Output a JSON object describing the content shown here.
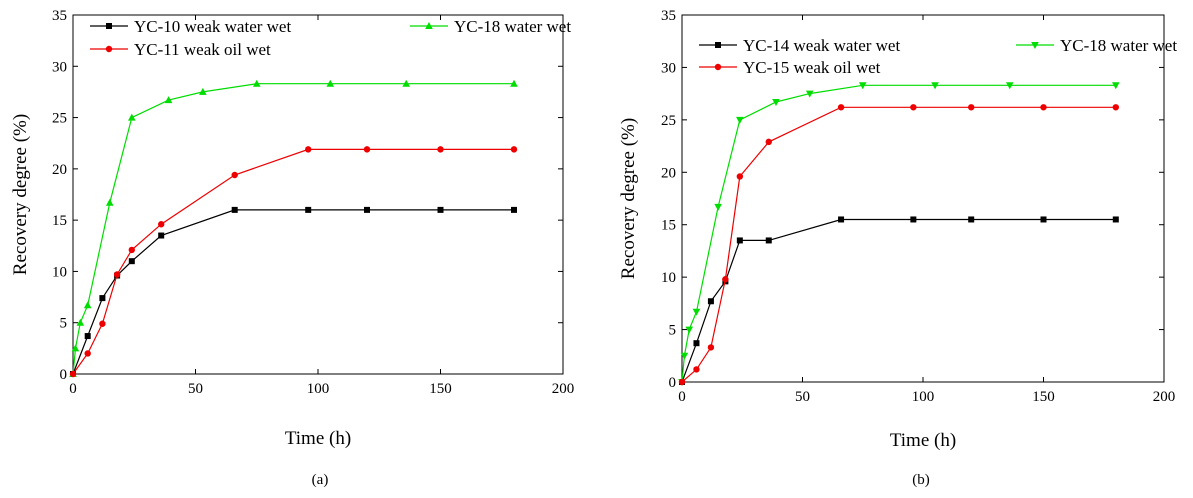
{
  "chart_data": [
    {
      "type": "line",
      "caption": "(a)",
      "xlabel": "Time (h)",
      "ylabel": "Recovery degree (%)",
      "xlim": [
        0,
        200
      ],
      "ylim": [
        0,
        35
      ],
      "xticks": [
        "0",
        "50",
        "100",
        "150",
        "200"
      ],
      "yticks": [
        "0",
        "5",
        "10",
        "15",
        "20",
        "25",
        "30",
        "35"
      ],
      "grid": false,
      "legend_position": "top-left",
      "series": [
        {
          "name": "YC-10 weak water wet",
          "color": "#000000",
          "marker": "square",
          "x": [
            0,
            6,
            12,
            18,
            24,
            36,
            66,
            96,
            120,
            150,
            180
          ],
          "y": [
            0,
            3.7,
            7.4,
            9.6,
            11.0,
            13.5,
            16.0,
            16.0,
            16.0,
            16.0,
            16.0
          ]
        },
        {
          "name": "YC-18 water wet",
          "color": "#00dd00",
          "marker": "triangle-up",
          "x": [
            0,
            1,
            3,
            6,
            15,
            24,
            39,
            53,
            75,
            105,
            136,
            180
          ],
          "y": [
            0,
            2.5,
            5.0,
            6.7,
            16.7,
            25.0,
            26.7,
            27.5,
            28.3,
            28.3,
            28.3,
            28.3
          ]
        },
        {
          "name": "YC-11 weak oil wet",
          "color": "#ee0000",
          "marker": "circle",
          "x": [
            0,
            6,
            12,
            18,
            24,
            36,
            66,
            96,
            120,
            150,
            180
          ],
          "y": [
            0,
            2.0,
            4.9,
            9.7,
            12.1,
            14.6,
            19.4,
            21.9,
            21.9,
            21.9,
            21.9
          ]
        }
      ]
    },
    {
      "type": "line",
      "caption": "(b)",
      "xlabel": "Time (h)",
      "ylabel": "Recovery degree (%)",
      "xlim": [
        0,
        200
      ],
      "ylim": [
        0,
        35
      ],
      "xticks": [
        "0",
        "50",
        "100",
        "150",
        "200"
      ],
      "yticks": [
        "0",
        "5",
        "10",
        "15",
        "20",
        "25",
        "30",
        "35"
      ],
      "grid": false,
      "legend_position": "top-left",
      "series": [
        {
          "name": "YC-14 weak water wet",
          "color": "#000000",
          "marker": "square",
          "x": [
            0,
            6,
            12,
            18,
            24,
            36,
            66,
            96,
            120,
            150,
            180
          ],
          "y": [
            0,
            3.7,
            7.7,
            9.6,
            13.5,
            13.5,
            15.5,
            15.5,
            15.5,
            15.5,
            15.5
          ]
        },
        {
          "name": "YC-18 water wet",
          "color": "#00dd00",
          "marker": "triangle-down",
          "x": [
            0,
            1,
            3,
            6,
            15,
            24,
            39,
            53,
            75,
            105,
            136,
            180
          ],
          "y": [
            0,
            2.5,
            5.0,
            6.7,
            16.7,
            25.0,
            26.7,
            27.5,
            28.3,
            28.3,
            28.3,
            28.3
          ]
        },
        {
          "name": "YC-15 weak oil wet",
          "color": "#ee0000",
          "marker": "circle",
          "x": [
            0,
            6,
            12,
            18,
            24,
            36,
            66,
            96,
            120,
            150,
            180
          ],
          "y": [
            0,
            1.2,
            3.3,
            9.8,
            19.6,
            22.9,
            26.2,
            26.2,
            26.2,
            26.2,
            26.2
          ]
        }
      ]
    }
  ]
}
